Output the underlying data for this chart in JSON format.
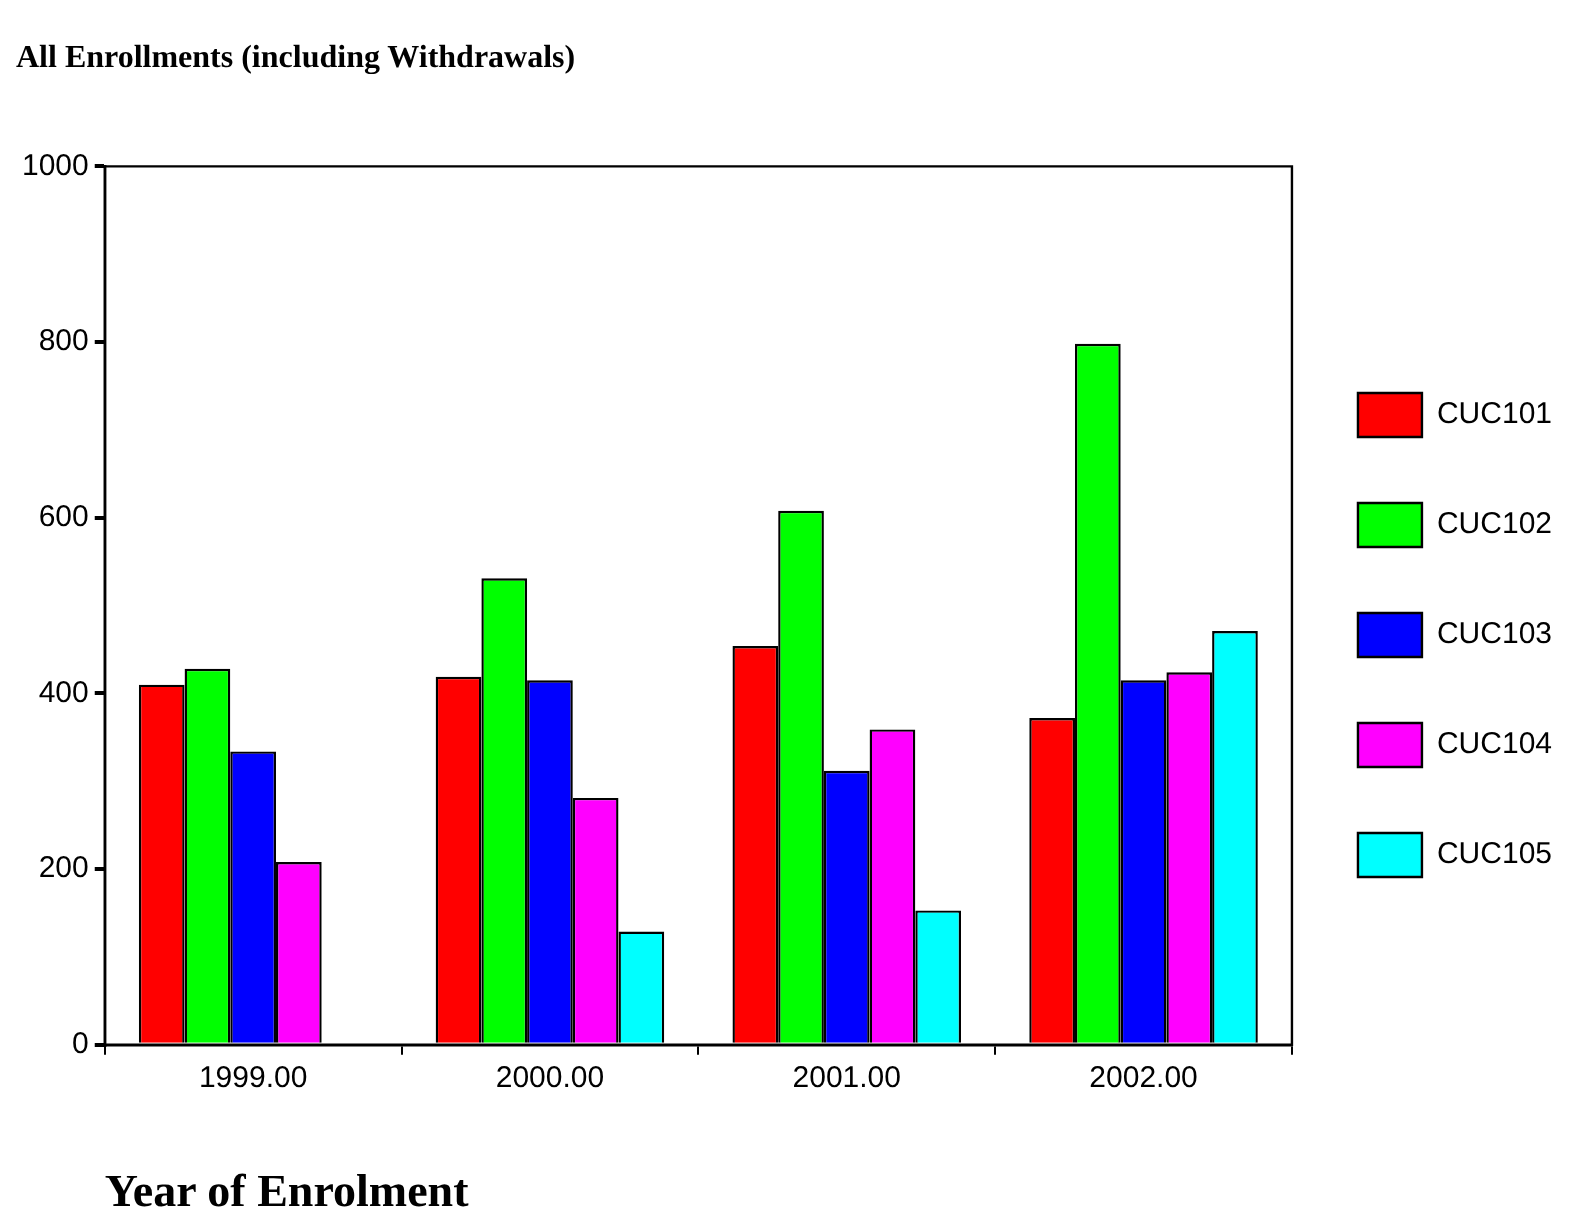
{
  "chart_data": {
    "type": "bar",
    "title": "All Enrollments (including Withdrawals)",
    "xlabel": "Year of Enrolment",
    "categories": [
      "1999.00",
      "2000.00",
      "2001.00",
      "2002.00"
    ],
    "series": [
      {
        "name": "CUC101",
        "color": "#ff0000",
        "values": [
          410,
          419,
          454,
          372
        ]
      },
      {
        "name": "CUC102",
        "color": "#00ff00",
        "values": [
          428,
          531,
          608,
          798
        ]
      },
      {
        "name": "CUC103",
        "color": "#0000ff",
        "values": [
          334,
          415,
          312,
          415
        ]
      },
      {
        "name": "CUC104",
        "color": "#ff00ff",
        "values": [
          208,
          281,
          359,
          424
        ]
      },
      {
        "name": "CUC105",
        "color": "#00ffff",
        "values": [
          0,
          129,
          153,
          471
        ]
      }
    ],
    "ylim": [
      0,
      1000
    ],
    "yticks": [
      0,
      200,
      400,
      600,
      800,
      1000
    ],
    "grid": false,
    "legend": "right"
  }
}
